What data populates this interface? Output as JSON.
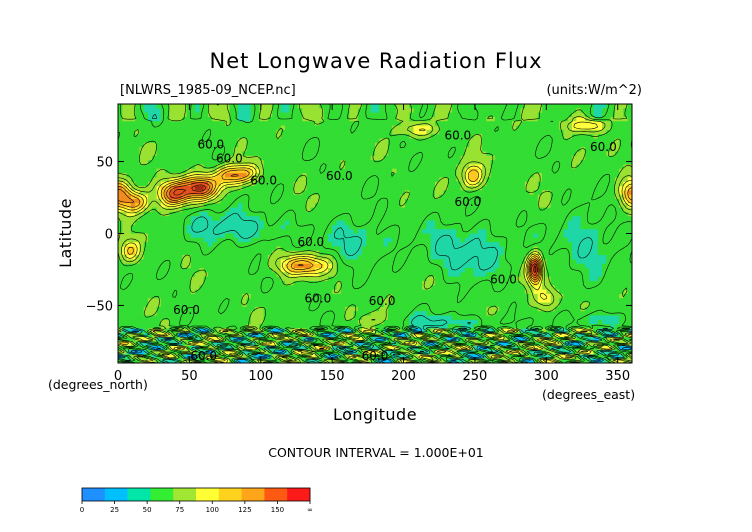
{
  "chart_data": {
    "type": "heatmap",
    "title": "Net Longwave Radiation Flux",
    "file_label": "[NLWRS_1985-09_NCEP.nc]",
    "units_label": "(units:W/m^2)",
    "xlabel": "Longitude",
    "ylabel": "Latitude",
    "x_unit_label": "(degrees_east)",
    "y_unit_label": "(degrees_north)",
    "xlim": [
      0,
      360
    ],
    "ylim": [
      -90,
      90
    ],
    "x_ticks": [
      0,
      50,
      100,
      150,
      200,
      250,
      300,
      350
    ],
    "y_ticks": [
      -50,
      0,
      50
    ],
    "x_tick_labels": [
      "0",
      "50",
      "100",
      "150",
      "200",
      "250",
      "300",
      "350"
    ],
    "y_tick_labels": [
      "−50",
      "0",
      "50"
    ],
    "contour_interval_label": "CONTOUR INTERVAL = 1.000E+01",
    "contour_labels": [
      {
        "text": "60.0",
        "lon": 65,
        "lat": 62
      },
      {
        "text": "60.0",
        "lon": 78,
        "lat": 52
      },
      {
        "text": "60.0",
        "lon": 102,
        "lat": 37
      },
      {
        "text": "60.0",
        "lon": 155,
        "lat": 40
      },
      {
        "text": "60.0",
        "lon": 245,
        "lat": 22
      },
      {
        "text": "60.0",
        "lon": 238,
        "lat": 68
      },
      {
        "text": "60.0",
        "lon": 340,
        "lat": 60
      },
      {
        "text": "60.0",
        "lon": 135,
        "lat": -6
      },
      {
        "text": "60.0",
        "lon": 270,
        "lat": -32
      },
      {
        "text": "60.0",
        "lon": 140,
        "lat": -45
      },
      {
        "text": "60.0",
        "lon": 185,
        "lat": -47
      },
      {
        "text": "60.0",
        "lon": 48,
        "lat": -53
      },
      {
        "text": "60.0",
        "lon": 60,
        "lat": -85
      },
      {
        "text": "60.0",
        "lon": 180,
        "lat": -85
      }
    ],
    "colorbar": {
      "tick_labels": [
        "0",
        "25",
        "50",
        "75",
        "100",
        "125",
        "150",
        "∞"
      ],
      "colors": [
        "#1e90ff",
        "#00bfff",
        "#00e5a8",
        "#33ee33",
        "#a0e632",
        "#ffff33",
        "#ffd21e",
        "#ffa519",
        "#ff5a14",
        "#ff1a1a"
      ]
    },
    "fill_scale": {
      "colors": [
        "#1e90ff",
        "#00bfff",
        "#1fd7a6",
        "#33dd33",
        "#99e232",
        "#ffff3c",
        "#ffc820",
        "#f08c1e",
        "#e1501e",
        "#a02a14",
        "#501414"
      ],
      "thresholds": [
        15,
        30,
        45,
        60,
        75,
        90,
        105,
        120,
        135,
        150
      ]
    },
    "grid": false
  }
}
